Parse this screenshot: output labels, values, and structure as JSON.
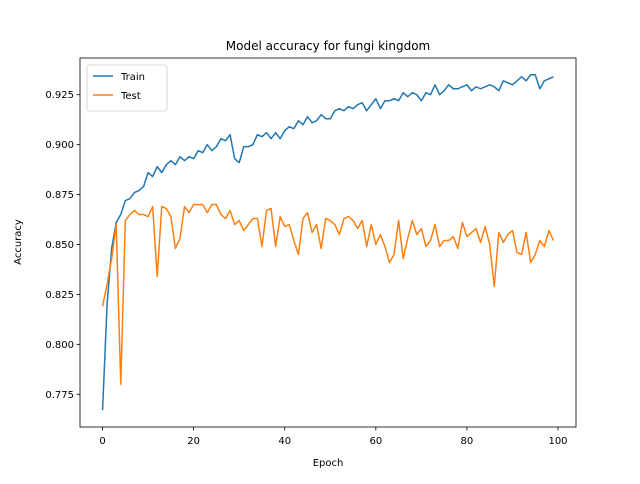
{
  "chart_data": {
    "type": "line",
    "title": "Model accuracy for fungi kingdom",
    "xlabel": "Epoch",
    "ylabel": "Accuracy",
    "x": [
      0,
      1,
      2,
      3,
      4,
      5,
      6,
      7,
      8,
      9,
      10,
      11,
      12,
      13,
      14,
      15,
      16,
      17,
      18,
      19,
      20,
      21,
      22,
      23,
      24,
      25,
      26,
      27,
      28,
      29,
      30,
      31,
      32,
      33,
      34,
      35,
      36,
      37,
      38,
      39,
      40,
      41,
      42,
      43,
      44,
      45,
      46,
      47,
      48,
      49,
      50,
      51,
      52,
      53,
      54,
      55,
      56,
      57,
      58,
      59,
      60,
      61,
      62,
      63,
      64,
      65,
      66,
      67,
      68,
      69,
      70,
      71,
      72,
      73,
      74,
      75,
      76,
      77,
      78,
      79,
      80,
      81,
      82,
      83,
      84,
      85,
      86,
      87,
      88,
      89,
      90,
      91,
      92,
      93,
      94,
      95,
      96,
      97,
      98,
      99
    ],
    "series": [
      {
        "name": "Train",
        "color": "#1f77b4",
        "values": [
          0.767,
          0.82,
          0.848,
          0.861,
          0.865,
          0.872,
          0.873,
          0.876,
          0.877,
          0.879,
          0.886,
          0.884,
          0.889,
          0.886,
          0.89,
          0.892,
          0.89,
          0.894,
          0.892,
          0.894,
          0.893,
          0.897,
          0.896,
          0.9,
          0.897,
          0.899,
          0.903,
          0.902,
          0.905,
          0.893,
          0.891,
          0.899,
          0.899,
          0.9,
          0.905,
          0.904,
          0.906,
          0.903,
          0.906,
          0.903,
          0.907,
          0.909,
          0.908,
          0.912,
          0.91,
          0.914,
          0.911,
          0.912,
          0.915,
          0.913,
          0.913,
          0.917,
          0.918,
          0.917,
          0.919,
          0.918,
          0.92,
          0.921,
          0.917,
          0.92,
          0.923,
          0.918,
          0.922,
          0.922,
          0.923,
          0.922,
          0.926,
          0.924,
          0.926,
          0.925,
          0.922,
          0.926,
          0.925,
          0.93,
          0.925,
          0.927,
          0.93,
          0.928,
          0.928,
          0.929,
          0.93,
          0.927,
          0.929,
          0.928,
          0.929,
          0.93,
          0.929,
          0.927,
          0.932,
          0.931,
          0.93,
          0.932,
          0.934,
          0.932,
          0.935,
          0.935,
          0.928,
          0.932,
          0.933,
          0.934
        ]
      },
      {
        "name": "Test",
        "color": "#ff7f0e",
        "values": [
          0.819,
          0.83,
          0.843,
          0.86,
          0.78,
          0.862,
          0.865,
          0.867,
          0.865,
          0.865,
          0.864,
          0.869,
          0.834,
          0.869,
          0.868,
          0.864,
          0.848,
          0.853,
          0.869,
          0.866,
          0.87,
          0.87,
          0.87,
          0.866,
          0.87,
          0.87,
          0.865,
          0.863,
          0.867,
          0.86,
          0.862,
          0.857,
          0.86,
          0.863,
          0.863,
          0.849,
          0.867,
          0.868,
          0.849,
          0.864,
          0.859,
          0.86,
          0.852,
          0.845,
          0.863,
          0.866,
          0.856,
          0.86,
          0.848,
          0.863,
          0.862,
          0.86,
          0.855,
          0.863,
          0.864,
          0.862,
          0.858,
          0.862,
          0.849,
          0.86,
          0.85,
          0.855,
          0.849,
          0.841,
          0.845,
          0.862,
          0.843,
          0.853,
          0.862,
          0.855,
          0.858,
          0.849,
          0.852,
          0.86,
          0.849,
          0.852,
          0.852,
          0.854,
          0.848,
          0.861,
          0.854,
          0.856,
          0.858,
          0.851,
          0.859,
          0.85,
          0.829,
          0.856,
          0.851,
          0.855,
          0.857,
          0.846,
          0.845,
          0.856,
          0.841,
          0.845,
          0.852,
          0.849,
          0.857,
          0.852
        ]
      }
    ],
    "xlim": [
      -4.95,
      103.95
    ],
    "xticks": [
      0,
      20,
      40,
      60,
      80,
      100
    ],
    "ylim": [
      0.7586,
      0.9434
    ],
    "yticks": [
      0.775,
      {
        "value": 0.8,
        "label": "0.800"
      },
      0.825,
      {
        "value": 0.85,
        "label": "0.850"
      },
      0.875,
      {
        "value": 0.9,
        "label": "0.900"
      },
      0.925
    ],
    "legend": "upper left"
  }
}
